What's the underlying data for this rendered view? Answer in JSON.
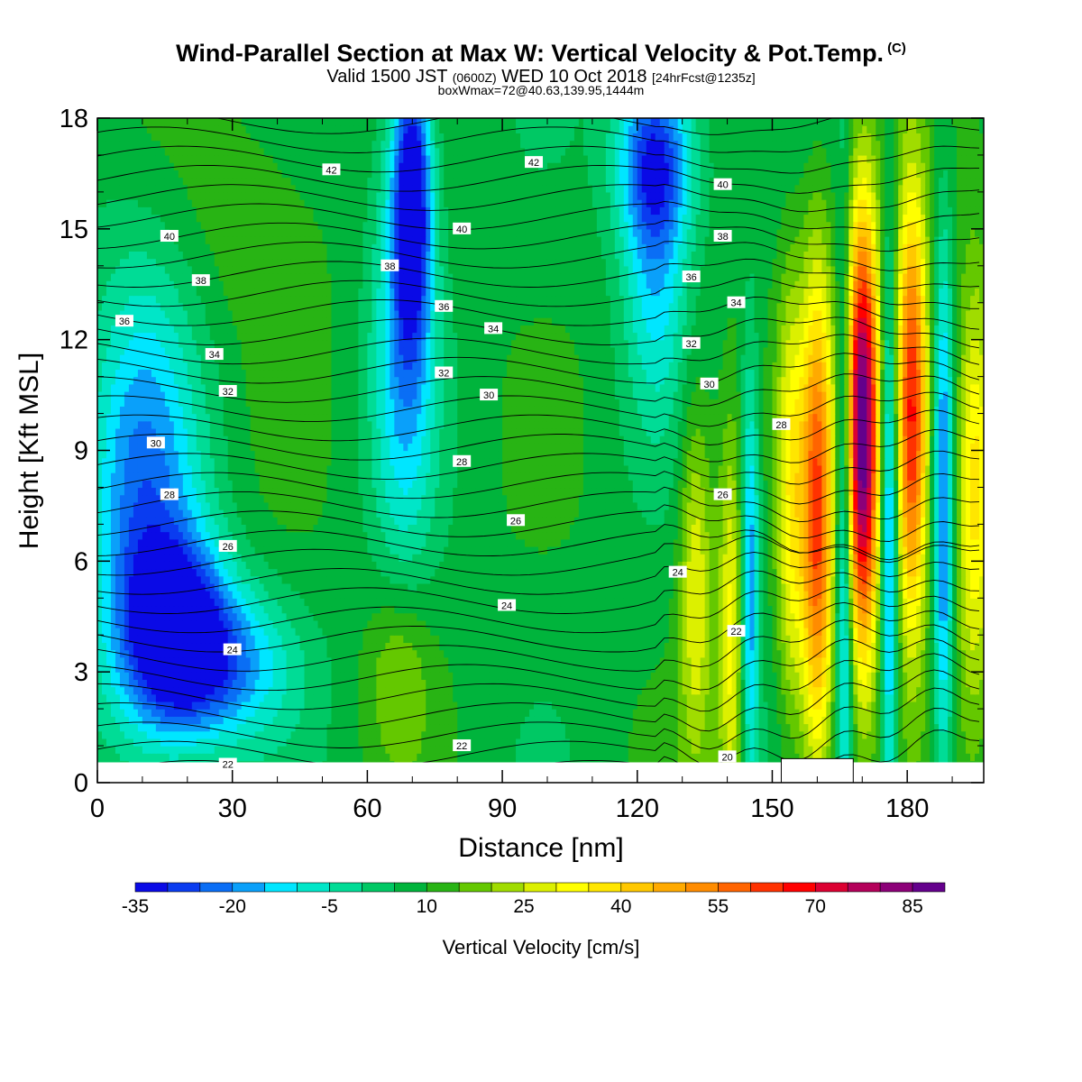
{
  "title": {
    "main": "Wind-Parallel Section at Max W: Vertical Velocity & Pot.Temp.",
    "copyright": "(C)",
    "valid_prefix": "Valid 1500 JST",
    "valid_zulu": "(0600Z)",
    "valid_date": "WED 10 Oct 2018",
    "forecast": "[24hrFcst@1235z]",
    "box_wmax": "boxWmax=72@40.63,139.95,1444m"
  },
  "chart_data": {
    "type": "heatmap",
    "description_fields": "filled contours of vertical velocity with overlaid potential temperature isolines",
    "xlabel": "Distance [nm]",
    "ylabel": "Height [Kft MSL]",
    "xlim": [
      0,
      197
    ],
    "ylim": [
      0,
      18
    ],
    "xticks": [
      0,
      30,
      60,
      90,
      120,
      150,
      180
    ],
    "yticks": [
      0,
      3,
      6,
      9,
      12,
      15,
      18
    ],
    "colorbar": {
      "label": "Vertical Velocity [cm/s]",
      "min": -35,
      "max": 95,
      "step": 5,
      "tick_labels": [
        -35,
        -20,
        -5,
        10,
        25,
        40,
        55,
        70,
        85
      ],
      "colors": [
        "#0a0ae6",
        "#0a3cf0",
        "#0a6ef5",
        "#0aa0fa",
        "#00e6ff",
        "#00e6c8",
        "#00dc96",
        "#00c864",
        "#00b43c",
        "#28b414",
        "#64c800",
        "#a0dc00",
        "#dcf000",
        "#ffff00",
        "#ffe600",
        "#ffc800",
        "#ffaa00",
        "#ff8c00",
        "#ff6400",
        "#ff3200",
        "#ff0000",
        "#dc0032",
        "#b4005a",
        "#8c0078",
        "#64008c"
      ]
    },
    "velocity_features": [
      {
        "x": 18,
        "y": 4.0,
        "sx": 8,
        "sy": 1.8,
        "w": -34
      },
      {
        "x": 10,
        "y": 7.5,
        "sx": 9,
        "sy": 4.5,
        "w": -20
      },
      {
        "x": 30,
        "y": 3.2,
        "sx": 10,
        "sy": 1.5,
        "w": -14
      },
      {
        "x": 35,
        "y": 15.5,
        "sx": 12,
        "sy": 2.5,
        "w": 14
      },
      {
        "x": 70,
        "y": 16.0,
        "sx": 3,
        "sy": 2.8,
        "w": -34
      },
      {
        "x": 68,
        "y": 12.0,
        "sx": 5,
        "sy": 4.5,
        "w": -14
      },
      {
        "x": 67,
        "y": 3.0,
        "sx": 5,
        "sy": 1.8,
        "w": 20
      },
      {
        "x": 92,
        "y": 9.0,
        "sx": 8,
        "sy": 7,
        "w": 8
      },
      {
        "x": 124,
        "y": 17.0,
        "sx": 6,
        "sy": 1.8,
        "w": -30
      },
      {
        "x": 124,
        "y": 13.5,
        "sx": 5,
        "sy": 2.5,
        "w": -10
      },
      {
        "x": 110,
        "y": 3.0,
        "sx": 6,
        "sy": 3,
        "w": 8
      },
      {
        "x": 133,
        "y": 5.5,
        "sx": 2.6,
        "sy": 3.5,
        "w": 30
      },
      {
        "x": 145,
        "y": 5.5,
        "sx": 1.5,
        "sy": 4,
        "w": -22
      },
      {
        "x": 141,
        "y": 4.0,
        "sx": 2.2,
        "sy": 4,
        "w": 32
      },
      {
        "x": 154,
        "y": 7.5,
        "sx": 2.2,
        "sy": 4.5,
        "w": 30
      },
      {
        "x": 160,
        "y": 7.0,
        "sx": 2.6,
        "sy": 4.8,
        "w": 60
      },
      {
        "x": 166,
        "y": 7.0,
        "sx": 1.4,
        "sy": 5.5,
        "w": -30
      },
      {
        "x": 170,
        "y": 9.5,
        "sx": 2.8,
        "sy": 4.2,
        "w": 92
      },
      {
        "x": 176,
        "y": 7.0,
        "sx": 1.4,
        "sy": 5.5,
        "w": -28
      },
      {
        "x": 181,
        "y": 10.0,
        "sx": 2.6,
        "sy": 4.0,
        "w": 70
      },
      {
        "x": 188,
        "y": 7.0,
        "sx": 1.6,
        "sy": 5.5,
        "w": -22
      },
      {
        "x": 195,
        "y": 8.0,
        "sx": 3,
        "sy": 4,
        "w": 38
      }
    ],
    "theta_isolines_labeled": [
      {
        "label": "42",
        "x": 52,
        "y": 16.6
      },
      {
        "label": "42",
        "x": 97,
        "y": 16.8
      },
      {
        "label": "40",
        "x": 16,
        "y": 14.8
      },
      {
        "label": "40",
        "x": 81,
        "y": 15.0
      },
      {
        "label": "40",
        "x": 139,
        "y": 16.2
      },
      {
        "label": "38",
        "x": 23,
        "y": 13.6
      },
      {
        "label": "38",
        "x": 65,
        "y": 14.0
      },
      {
        "label": "38",
        "x": 139,
        "y": 14.8
      },
      {
        "label": "36",
        "x": 6,
        "y": 12.5
      },
      {
        "label": "36",
        "x": 77,
        "y": 12.9
      },
      {
        "label": "36",
        "x": 132,
        "y": 13.7
      },
      {
        "label": "34",
        "x": 26,
        "y": 11.6
      },
      {
        "label": "34",
        "x": 88,
        "y": 12.3
      },
      {
        "label": "34",
        "x": 142,
        "y": 13.0
      },
      {
        "label": "32",
        "x": 29,
        "y": 10.6
      },
      {
        "label": "32",
        "x": 77,
        "y": 11.1
      },
      {
        "label": "32",
        "x": 132,
        "y": 11.9
      },
      {
        "label": "30",
        "x": 13,
        "y": 9.2
      },
      {
        "label": "30",
        "x": 87,
        "y": 10.5
      },
      {
        "label": "30",
        "x": 136,
        "y": 10.8
      },
      {
        "label": "28",
        "x": 16,
        "y": 7.8
      },
      {
        "label": "28",
        "x": 81,
        "y": 8.7
      },
      {
        "label": "28",
        "x": 152,
        "y": 9.7
      },
      {
        "label": "26",
        "x": 29,
        "y": 6.4
      },
      {
        "label": "26",
        "x": 93,
        "y": 7.1
      },
      {
        "label": "26",
        "x": 139,
        "y": 7.8
      },
      {
        "label": "24",
        "x": 129,
        "y": 5.7
      },
      {
        "label": "24",
        "x": 91,
        "y": 4.8
      },
      {
        "label": "24",
        "x": 30,
        "y": 3.6
      },
      {
        "label": "22",
        "x": 142,
        "y": 4.1
      },
      {
        "label": "22",
        "x": 81,
        "y": 1.0
      },
      {
        "label": "22",
        "x": 29,
        "y": 0.5
      },
      {
        "label": "20",
        "x": 140,
        "y": 0.7
      }
    ],
    "terrain_gap": {
      "x_start": 152,
      "x_end": 168,
      "top": 0.65
    },
    "grid": false
  }
}
